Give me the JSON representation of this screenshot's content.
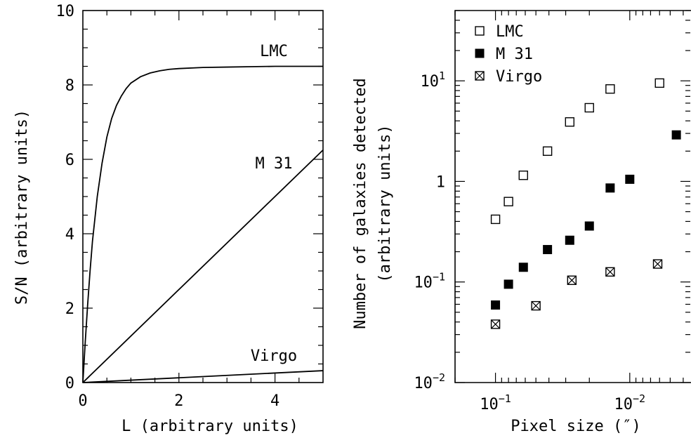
{
  "chart_data": [
    {
      "type": "line",
      "xlabel": "L (arbitrary units)",
      "ylabel": "S/N (arbitrary units)",
      "xlim": [
        0,
        5
      ],
      "ylim": [
        0,
        10
      ],
      "xticks": [
        0,
        2,
        4
      ],
      "xtick_labels": [
        "0",
        "2",
        "4"
      ],
      "yticks": [
        0,
        2,
        4,
        6,
        8,
        10
      ],
      "ytick_labels": [
        "0",
        "2",
        "4",
        "6",
        "8",
        "10"
      ],
      "grid": false,
      "series": [
        {
          "name": "LMC",
          "x": [
            0,
            0.05,
            0.1,
            0.15,
            0.2,
            0.3,
            0.4,
            0.5,
            0.6,
            0.7,
            0.8,
            0.9,
            1.0,
            1.2,
            1.4,
            1.6,
            1.8,
            2.0,
            2.5,
            3.0,
            3.5,
            4.0,
            4.5,
            5.0
          ],
          "y": [
            0,
            1.1,
            2.1,
            3.0,
            3.8,
            5.0,
            5.9,
            6.6,
            7.1,
            7.45,
            7.7,
            7.9,
            8.05,
            8.22,
            8.32,
            8.38,
            8.42,
            8.44,
            8.47,
            8.48,
            8.49,
            8.5,
            8.5,
            8.5
          ]
        },
        {
          "name": "M 31",
          "x": [
            0,
            5
          ],
          "y": [
            0,
            6.25
          ]
        },
        {
          "name": "Virgo",
          "x": [
            0,
            5
          ],
          "y": [
            0,
            0.32
          ]
        }
      ]
    },
    {
      "type": "scatter",
      "xlabel": "Pixel size (″)",
      "ylabel": "Number of galaxies detected (arbitrary units)",
      "ylabel_lines": [
        "Number of galaxies detected",
        "(arbitrary units)"
      ],
      "xscale": "log",
      "yscale": "log",
      "xaxis_reversed": true,
      "xlim": [
        0.2,
        0.0035
      ],
      "ylim": [
        0.01,
        50
      ],
      "xticks": [
        0.1,
        0.01
      ],
      "xtick_labels": [
        {
          "base": "10",
          "exp": "−1"
        },
        {
          "base": "10",
          "exp": "−2"
        }
      ],
      "yticks": [
        0.01,
        0.1,
        1,
        10
      ],
      "ytick_labels": [
        {
          "base": "10",
          "exp": "−2"
        },
        {
          "base": "10",
          "exp": "−1"
        },
        {
          "base": "1",
          "exp": ""
        },
        {
          "base": "10",
          "exp": "1"
        }
      ],
      "grid": false,
      "legend_position": "top-left",
      "series": [
        {
          "name": "LMC",
          "marker": "open-square",
          "x": [
            0.1,
            0.08,
            0.062,
            0.041,
            0.028,
            0.02,
            0.014,
            0.006
          ],
          "y": [
            0.42,
            0.63,
            1.15,
            2.0,
            3.9,
            5.4,
            8.3,
            9.5
          ]
        },
        {
          "name": "M 31",
          "marker": "filled-square",
          "x": [
            0.1,
            0.08,
            0.062,
            0.041,
            0.028,
            0.02,
            0.014,
            0.01,
            0.0045
          ],
          "y": [
            0.059,
            0.095,
            0.14,
            0.21,
            0.26,
            0.36,
            0.86,
            1.05,
            2.9
          ]
        },
        {
          "name": "Virgo",
          "marker": "crossed-square",
          "x": [
            0.1,
            0.05,
            0.027,
            0.014,
            0.0062
          ],
          "y": [
            0.038,
            0.058,
            0.104,
            0.126,
            0.151
          ]
        }
      ]
    }
  ]
}
